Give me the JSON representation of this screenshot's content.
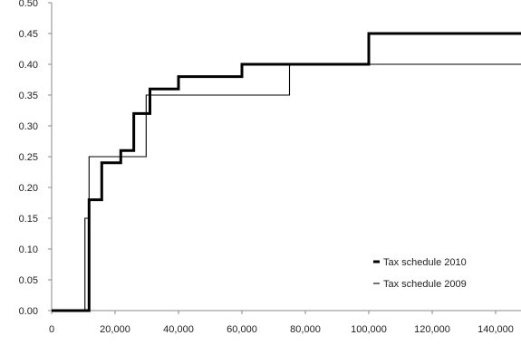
{
  "chart_data": {
    "type": "line",
    "title": "",
    "xlabel": "",
    "ylabel": "",
    "xlim": [
      0,
      148000
    ],
    "ylim": [
      0,
      0.5
    ],
    "x_ticks": [
      0,
      20000,
      40000,
      60000,
      80000,
      100000,
      120000,
      140000
    ],
    "x_tick_labels": [
      "0",
      "20,000",
      "40,000",
      "60,000",
      "80,000",
      "100,000",
      "120,000",
      "140,000"
    ],
    "y_ticks": [
      0,
      0.05,
      0.1,
      0.15,
      0.2,
      0.25,
      0.3,
      0.35,
      0.4,
      0.45,
      0.5
    ],
    "y_tick_labels": [
      "0.00",
      "0.05",
      "0.10",
      "0.15",
      "0.20",
      "0.25",
      "0.30",
      "0.35",
      "0.40",
      "0.45",
      "0.50"
    ],
    "grid": false,
    "legend_position": "bottom-right",
    "series": [
      {
        "name": "Tax schedule 2010",
        "style": "thick",
        "color": "#000000",
        "x": [
          0,
          11800,
          11800,
          15800,
          15800,
          21800,
          21800,
          25900,
          25900,
          31000,
          31000,
          40000,
          40000,
          60000,
          60000,
          100000,
          100000,
          148000
        ],
        "y": [
          0,
          0,
          0.18,
          0.18,
          0.24,
          0.24,
          0.26,
          0.26,
          0.32,
          0.32,
          0.36,
          0.36,
          0.38,
          0.38,
          0.4,
          0.4,
          0.45,
          0.45
        ]
      },
      {
        "name": "Tax schedule 2009",
        "style": "thin",
        "color": "#000000",
        "x": [
          0,
          10500,
          10500,
          11800,
          11800,
          29800,
          29800,
          31300,
          31300,
          75000,
          75000,
          148000
        ],
        "y": [
          0,
          0,
          0.15,
          0.15,
          0.25,
          0.25,
          0.35,
          0.35,
          0.35,
          0.35,
          0.4,
          0.4
        ]
      }
    ]
  }
}
